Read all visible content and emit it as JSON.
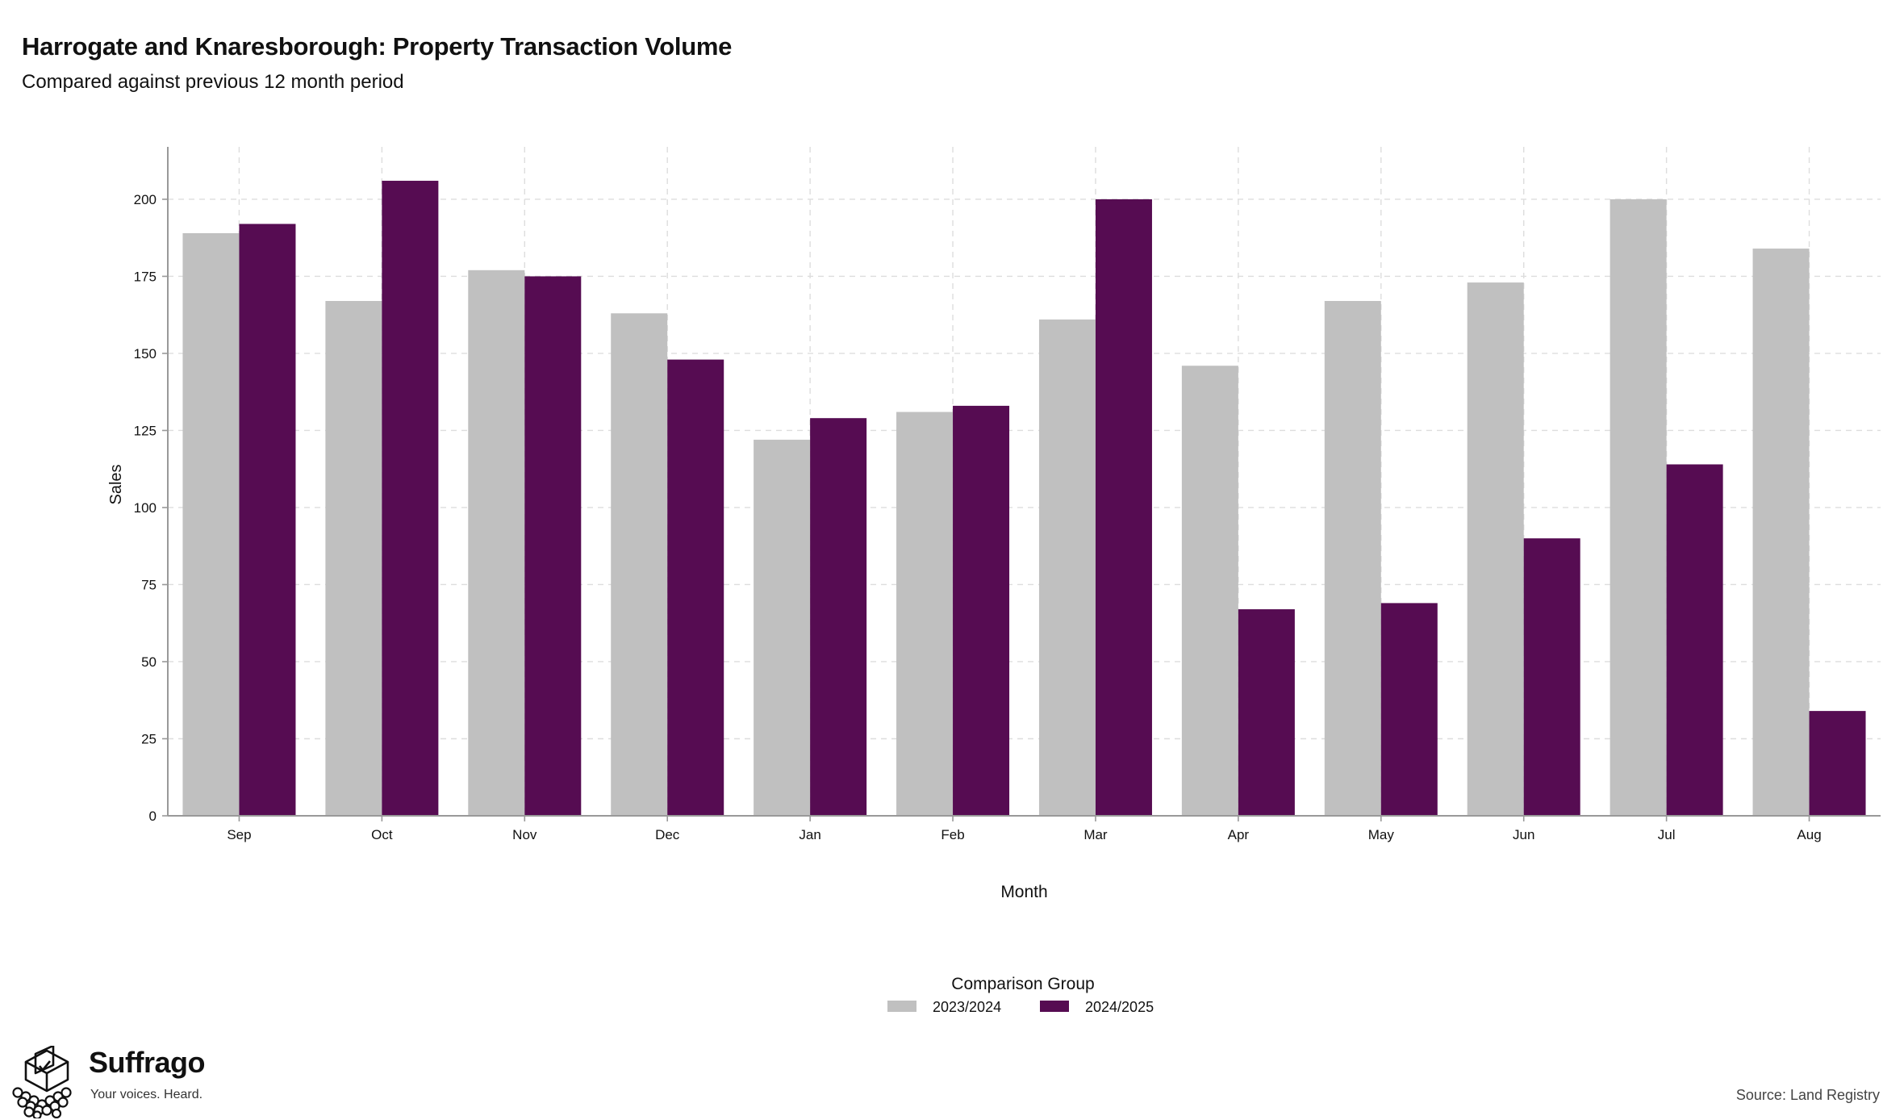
{
  "header": {
    "title": "Harrogate and Knaresborough: Property Transaction Volume",
    "subtitle": "Compared against previous 12 month period"
  },
  "footer": {
    "brand": "Suffrago",
    "tagline": "Your voices. Heard.",
    "source": "Source: Land Registry",
    "logo_icon": "ballot-box-crowd-icon"
  },
  "chart_data": {
    "type": "bar",
    "title": "Harrogate and Knaresborough: Property Transaction Volume",
    "subtitle": "Compared against previous 12 month period",
    "xlabel": "Month",
    "ylabel": "Sales",
    "categories": [
      "Sep",
      "Oct",
      "Nov",
      "Dec",
      "Jan",
      "Feb",
      "Mar",
      "Apr",
      "May",
      "Jun",
      "Jul",
      "Aug"
    ],
    "series": [
      {
        "name": "2023/2024",
        "color": "#c0c0c0",
        "values": [
          189,
          167,
          177,
          163,
          122,
          131,
          161,
          146,
          167,
          173,
          200,
          184
        ]
      },
      {
        "name": "2024/2025",
        "color": "#560c52",
        "values": [
          192,
          206,
          175,
          148,
          129,
          133,
          200,
          67,
          69,
          90,
          114,
          34
        ]
      }
    ],
    "ylim": [
      0,
      217
    ],
    "yticks": [
      0,
      25,
      50,
      75,
      100,
      125,
      150,
      175,
      200
    ],
    "grid": true,
    "legend": {
      "title": "Comparison Group",
      "position": "bottom"
    }
  }
}
